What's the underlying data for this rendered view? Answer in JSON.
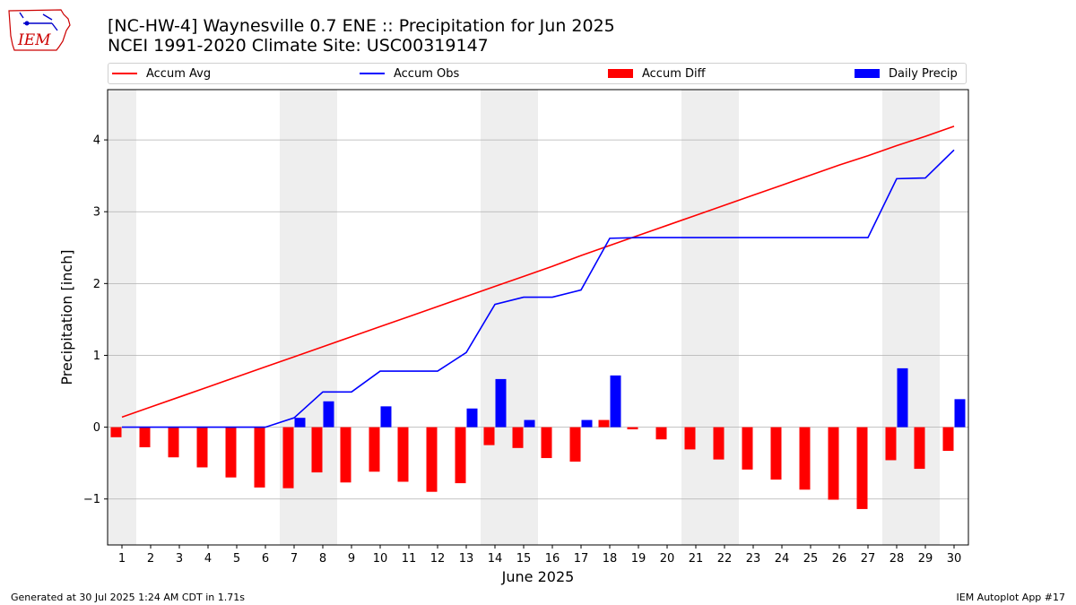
{
  "header": {
    "logo_text": "IEM",
    "title_line1": "[NC-HW-4] Waynesville 0.7 ENE :: Precipitation for Jun 2025",
    "title_line2": "NCEI 1991-2020 Climate Site: USC00319147"
  },
  "footer": {
    "left": "Generated at 30 Jul 2025 1:24 AM CDT in 1.71s",
    "right": "IEM Autoplot App #17"
  },
  "colors": {
    "accum_avg": "#ff0000",
    "accum_obs": "#0000ff",
    "accum_diff": "#ff0000",
    "daily_precip": "#0000ff",
    "weekend_shade": "#eeeeee",
    "grid": "#b0b0b0"
  },
  "chart_data": {
    "type": "bar",
    "xlabel": "June 2025",
    "ylabel": "Precipitation [inch]",
    "x": [
      1,
      2,
      3,
      4,
      5,
      6,
      7,
      8,
      9,
      10,
      11,
      12,
      13,
      14,
      15,
      16,
      17,
      18,
      19,
      20,
      21,
      22,
      23,
      24,
      25,
      26,
      27,
      28,
      29,
      30
    ],
    "xlim": [
      0.5,
      30.5
    ],
    "ylim": [
      -1.64,
      4.7
    ],
    "yticks": [
      -1,
      0,
      1,
      2,
      3,
      4
    ],
    "ytick_labels": [
      "−1",
      "0",
      "1",
      "2",
      "3",
      "4"
    ],
    "grid": "horizontal",
    "legend_position": "top, above plot",
    "shaded_day_ranges": [
      [
        0.5,
        1.5
      ],
      [
        6.5,
        8.5
      ],
      [
        13.5,
        15.5
      ],
      [
        20.5,
        22.5
      ],
      [
        27.5,
        29.5
      ]
    ],
    "series": [
      {
        "name": "Accum Avg",
        "type": "line",
        "values": [
          0.14,
          0.28,
          0.42,
          0.56,
          0.7,
          0.84,
          0.98,
          1.12,
          1.26,
          1.4,
          1.54,
          1.68,
          1.82,
          1.96,
          2.1,
          2.24,
          2.39,
          2.53,
          2.67,
          2.81,
          2.95,
          3.09,
          3.23,
          3.37,
          3.51,
          3.65,
          3.78,
          3.92,
          4.05,
          4.19
        ]
      },
      {
        "name": "Accum Obs",
        "type": "line",
        "values": [
          0,
          0,
          0,
          0,
          0,
          0,
          0.13,
          0.49,
          0.49,
          0.78,
          0.78,
          0.78,
          1.04,
          1.71,
          1.81,
          1.81,
          1.91,
          2.63,
          2.64,
          2.64,
          2.64,
          2.64,
          2.64,
          2.64,
          2.64,
          2.64,
          2.64,
          3.46,
          3.47,
          3.86
        ]
      },
      {
        "name": "Accum Diff",
        "type": "bar",
        "values": [
          -0.14,
          -0.28,
          -0.42,
          -0.56,
          -0.7,
          -0.84,
          -0.85,
          -0.63,
          -0.77,
          -0.62,
          -0.76,
          -0.9,
          -0.78,
          -0.25,
          -0.29,
          -0.43,
          -0.48,
          0.1,
          -0.03,
          -0.17,
          -0.31,
          -0.45,
          -0.59,
          -0.73,
          -0.87,
          -1.01,
          -1.14,
          -0.46,
          -0.58,
          -0.33
        ]
      },
      {
        "name": "Daily Precip",
        "type": "bar",
        "values": [
          0,
          0,
          0,
          0,
          0,
          0,
          0.13,
          0.36,
          0,
          0.29,
          0,
          0,
          0.26,
          0.67,
          0.1,
          0,
          0.1,
          0.72,
          0,
          0,
          0,
          0,
          0,
          0,
          0,
          0,
          0,
          0.82,
          0,
          0.39
        ]
      }
    ]
  }
}
